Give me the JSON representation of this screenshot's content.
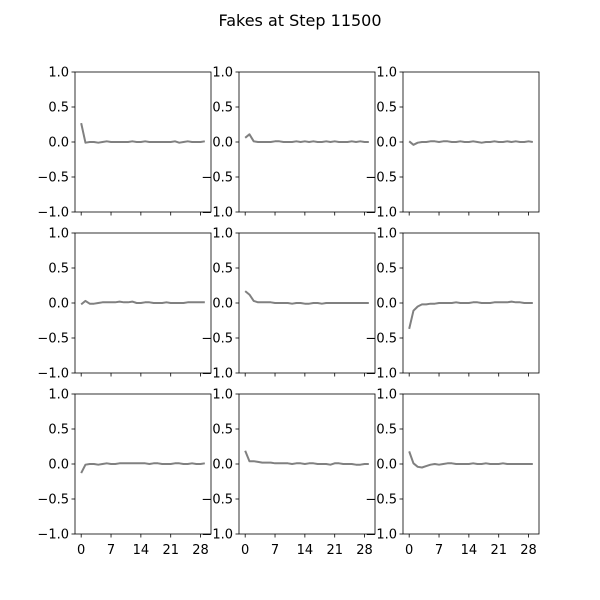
{
  "figure": {
    "title": "Fakes at Step 11500"
  },
  "chart_data": {
    "type": "line",
    "grid": false,
    "layout": "3x3",
    "x_ticks": [
      0,
      7,
      14,
      21,
      28
    ],
    "y_ticks": [
      "1.0",
      "0.5",
      "0.0",
      "−0.5",
      "−1.0"
    ],
    "ylim": [
      -1.0,
      1.0
    ],
    "xlim": [
      -1.45,
      30.45
    ],
    "line_color": "#808080",
    "subplots": [
      {
        "row": 0,
        "col": 0,
        "x": [
          0,
          1,
          2,
          3,
          4,
          5,
          6,
          7,
          8,
          9,
          10,
          11,
          12,
          13,
          14,
          15,
          16,
          17,
          18,
          19,
          20,
          21,
          22,
          23,
          24,
          25,
          26,
          27,
          28,
          29
        ],
        "values": [
          0.27,
          -0.01,
          0.0,
          0.0,
          -0.01,
          0.0,
          0.01,
          0.0,
          0.0,
          0.0,
          0.0,
          0.0,
          0.01,
          0.0,
          0.0,
          0.01,
          0.0,
          0.0,
          0.0,
          0.0,
          0.0,
          0.0,
          0.01,
          -0.01,
          0.0,
          0.01,
          0.0,
          0.0,
          0.0,
          0.01
        ]
      },
      {
        "row": 0,
        "col": 1,
        "x": [
          0,
          1,
          2,
          3,
          4,
          5,
          6,
          7,
          8,
          9,
          10,
          11,
          12,
          13,
          14,
          15,
          16,
          17,
          18,
          19,
          20,
          21,
          22,
          23,
          24,
          25,
          26,
          27,
          28,
          29
        ],
        "values": [
          0.06,
          0.11,
          0.01,
          0.0,
          0.0,
          0.0,
          0.0,
          0.01,
          0.01,
          0.0,
          0.0,
          0.0,
          0.01,
          0.0,
          0.01,
          0.0,
          0.01,
          0.0,
          0.0,
          0.01,
          0.0,
          0.01,
          0.0,
          0.0,
          0.0,
          0.01,
          0.0,
          0.01,
          0.0,
          0.0
        ]
      },
      {
        "row": 0,
        "col": 2,
        "x": [
          0,
          1,
          2,
          3,
          4,
          5,
          6,
          7,
          8,
          9,
          10,
          11,
          12,
          13,
          14,
          15,
          16,
          17,
          18,
          19,
          20,
          21,
          22,
          23,
          24,
          25,
          26,
          27,
          28,
          29
        ],
        "values": [
          0.01,
          -0.04,
          -0.01,
          0.0,
          0.0,
          0.01,
          0.01,
          0.0,
          0.01,
          0.01,
          0.0,
          0.0,
          0.01,
          0.0,
          0.0,
          0.01,
          0.0,
          -0.01,
          0.0,
          0.0,
          0.01,
          0.0,
          0.0,
          0.01,
          0.0,
          0.01,
          0.0,
          0.0,
          0.01,
          0.0
        ]
      },
      {
        "row": 1,
        "col": 0,
        "x": [
          0,
          1,
          2,
          3,
          4,
          5,
          6,
          7,
          8,
          9,
          10,
          11,
          12,
          13,
          14,
          15,
          16,
          17,
          18,
          19,
          20,
          21,
          22,
          23,
          24,
          25,
          26,
          27,
          28,
          29
        ],
        "values": [
          -0.02,
          0.03,
          -0.01,
          -0.01,
          0.0,
          0.01,
          0.01,
          0.01,
          0.01,
          0.02,
          0.01,
          0.01,
          0.02,
          0.0,
          0.0,
          0.01,
          0.01,
          0.0,
          0.0,
          0.0,
          0.01,
          0.0,
          0.0,
          0.0,
          0.0,
          0.01,
          0.01,
          0.01,
          0.01,
          0.01
        ]
      },
      {
        "row": 1,
        "col": 1,
        "x": [
          0,
          1,
          2,
          3,
          4,
          5,
          6,
          7,
          8,
          9,
          10,
          11,
          12,
          13,
          14,
          15,
          16,
          17,
          18,
          19,
          20,
          21,
          22,
          23,
          24,
          25,
          26,
          27,
          28,
          29
        ],
        "values": [
          0.17,
          0.12,
          0.03,
          0.01,
          0.01,
          0.01,
          0.01,
          0.0,
          0.0,
          0.0,
          0.0,
          -0.01,
          0.0,
          0.0,
          -0.01,
          -0.01,
          0.0,
          0.0,
          -0.01,
          0.0,
          0.0,
          0.0,
          0.0,
          0.0,
          0.0,
          0.0,
          0.0,
          0.0,
          0.0,
          0.0
        ]
      },
      {
        "row": 1,
        "col": 2,
        "x": [
          0,
          1,
          2,
          3,
          4,
          5,
          6,
          7,
          8,
          9,
          10,
          11,
          12,
          13,
          14,
          15,
          16,
          17,
          18,
          19,
          20,
          21,
          22,
          23,
          24,
          25,
          26,
          27,
          28,
          29
        ],
        "values": [
          -0.37,
          -0.11,
          -0.05,
          -0.02,
          -0.02,
          -0.01,
          -0.01,
          0.0,
          0.0,
          0.0,
          0.0,
          0.01,
          0.0,
          0.0,
          0.0,
          0.01,
          0.01,
          0.0,
          0.0,
          0.0,
          0.01,
          0.01,
          0.01,
          0.01,
          0.02,
          0.01,
          0.01,
          0.0,
          0.0,
          0.0
        ]
      },
      {
        "row": 2,
        "col": 0,
        "x": [
          0,
          1,
          2,
          3,
          4,
          5,
          6,
          7,
          8,
          9,
          10,
          11,
          12,
          13,
          14,
          15,
          16,
          17,
          18,
          19,
          20,
          21,
          22,
          23,
          24,
          25,
          26,
          27,
          28,
          29
        ],
        "values": [
          -0.13,
          -0.01,
          0.0,
          0.0,
          -0.01,
          0.0,
          0.01,
          0.0,
          0.0,
          0.01,
          0.01,
          0.01,
          0.01,
          0.01,
          0.01,
          0.01,
          0.0,
          0.01,
          0.01,
          0.0,
          0.0,
          0.0,
          0.01,
          0.01,
          0.0,
          0.0,
          0.01,
          0.0,
          0.0,
          0.01
        ]
      },
      {
        "row": 2,
        "col": 1,
        "x": [
          0,
          1,
          2,
          3,
          4,
          5,
          6,
          7,
          8,
          9,
          10,
          11,
          12,
          13,
          14,
          15,
          16,
          17,
          18,
          19,
          20,
          21,
          22,
          23,
          24,
          25,
          26,
          27,
          28,
          29
        ],
        "values": [
          0.19,
          0.04,
          0.04,
          0.03,
          0.02,
          0.02,
          0.02,
          0.01,
          0.01,
          0.01,
          0.01,
          0.0,
          0.01,
          0.01,
          0.0,
          0.01,
          0.01,
          0.0,
          0.0,
          0.0,
          -0.01,
          0.01,
          0.01,
          0.0,
          0.0,
          0.0,
          -0.01,
          -0.01,
          0.0,
          0.0
        ]
      },
      {
        "row": 2,
        "col": 2,
        "x": [
          0,
          1,
          2,
          3,
          4,
          5,
          6,
          7,
          8,
          9,
          10,
          11,
          12,
          13,
          14,
          15,
          16,
          17,
          18,
          19,
          20,
          21,
          22,
          23,
          24,
          25,
          26,
          27,
          28,
          29
        ],
        "values": [
          0.18,
          0.01,
          -0.04,
          -0.05,
          -0.03,
          -0.01,
          0.0,
          -0.01,
          0.0,
          0.01,
          0.01,
          0.0,
          0.0,
          0.0,
          0.0,
          0.01,
          0.0,
          0.0,
          0.01,
          0.0,
          0.0,
          0.0,
          0.01,
          0.0,
          0.0,
          0.0,
          0.0,
          0.0,
          0.0,
          0.0
        ]
      }
    ]
  }
}
